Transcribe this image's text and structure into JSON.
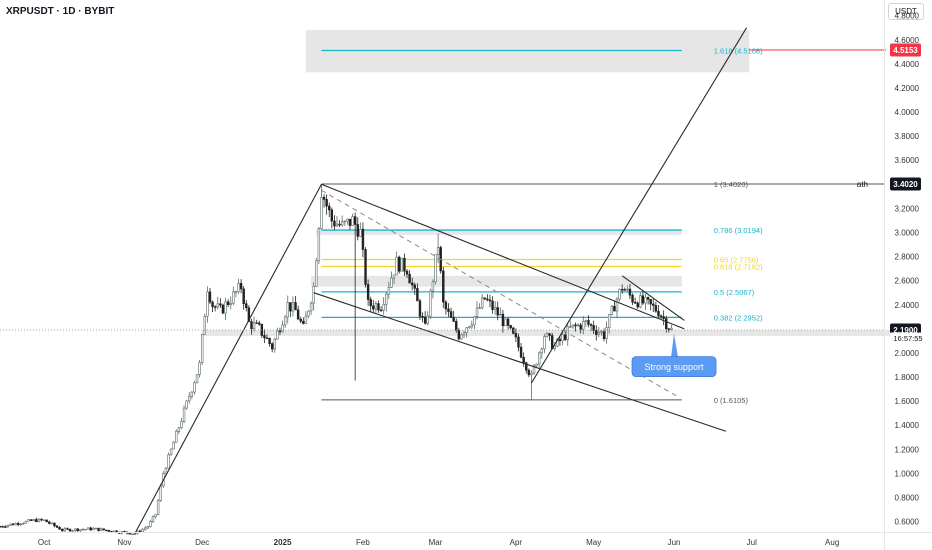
{
  "header": {
    "symbol_title": "XRPUSDT · 1D · BYBIT",
    "currency": "USDT"
  },
  "colors": {
    "up": "#26a69a",
    "down": "#222222",
    "trend": "#2a2a2a",
    "fib_teal": "#17b3c8",
    "fib_yellow": "#f2d42a",
    "fib_gray": "#555555",
    "zone_gray": "#e6e6e6",
    "target_red": "#f23645",
    "callout_blue": "#5b9bf4",
    "axis_text": "#333333"
  },
  "chart_data": {
    "type": "candlestick",
    "title": "XRPUSDT · 1D · BYBIT",
    "y_axis": {
      "unit": "USDT",
      "ylim": [
        0.53,
        4.93
      ],
      "ticks": [
        "0.6000",
        "0.8000",
        "1.0000",
        "1.2000",
        "1.4000",
        "1.6000",
        "1.8000",
        "2.0000",
        "2.2000",
        "2.4000",
        "2.6000",
        "2.8000",
        "3.0000",
        "3.2000",
        "3.4000",
        "3.6000",
        "3.8000",
        "4.0000",
        "4.2000",
        "4.4000",
        "4.6000",
        "4.8000"
      ]
    },
    "x_axis": {
      "start": "2024-09-14",
      "end": "2025-08-21",
      "ticks": [
        {
          "date": "2024-10-01",
          "label": "Oct"
        },
        {
          "date": "2024-11-01",
          "label": "Nov"
        },
        {
          "date": "2024-12-01",
          "label": "Dec"
        },
        {
          "date": "2025-01-01",
          "label": "2025",
          "bold": true
        },
        {
          "date": "2025-02-01",
          "label": "Feb"
        },
        {
          "date": "2025-03-01",
          "label": "Mar"
        },
        {
          "date": "2025-04-01",
          "label": "Apr"
        },
        {
          "date": "2025-05-01",
          "label": "May"
        },
        {
          "date": "2025-06-01",
          "label": "Jun"
        },
        {
          "date": "2025-07-01",
          "label": "Jul"
        },
        {
          "date": "2025-08-01",
          "label": "Aug"
        }
      ]
    },
    "price_path": [
      [
        "2024-09-14",
        0.56
      ],
      [
        "2024-09-27",
        0.61
      ],
      [
        "2024-10-01",
        0.61
      ],
      [
        "2024-10-08",
        0.53
      ],
      [
        "2024-10-20",
        0.54
      ],
      [
        "2024-11-01",
        0.51
      ],
      [
        "2024-11-05",
        0.5
      ],
      [
        "2024-11-10",
        0.56
      ],
      [
        "2024-11-13",
        0.66
      ],
      [
        "2024-11-16",
        1.0
      ],
      [
        "2024-11-23",
        1.45
      ],
      [
        "2024-11-30",
        1.9
      ],
      [
        "2024-12-03",
        2.55
      ],
      [
        "2024-12-05",
        2.4
      ],
      [
        "2024-12-08",
        2.35
      ],
      [
        "2024-12-12",
        2.45
      ],
      [
        "2024-12-16",
        2.55
      ],
      [
        "2024-12-19",
        2.25
      ],
      [
        "2024-12-23",
        2.2
      ],
      [
        "2024-12-28",
        2.05
      ],
      [
        "2025-01-03",
        2.4
      ],
      [
        "2025-01-06",
        2.35
      ],
      [
        "2025-01-09",
        2.2
      ],
      [
        "2025-01-13",
        2.55
      ],
      [
        "2025-01-16",
        3.35
      ],
      [
        "2025-01-20",
        3.1
      ],
      [
        "2025-01-24",
        3.05
      ],
      [
        "2025-01-28",
        3.1
      ],
      [
        "2025-01-31",
        3.0
      ],
      [
        "2025-02-03",
        2.4
      ],
      [
        "2025-02-08",
        2.4
      ],
      [
        "2025-02-14",
        2.75
      ],
      [
        "2025-02-18",
        2.7
      ],
      [
        "2025-02-25",
        2.2
      ],
      [
        "2025-03-02",
        2.9
      ],
      [
        "2025-03-04",
        2.4
      ],
      [
        "2025-03-10",
        2.15
      ],
      [
        "2025-03-16",
        2.3
      ],
      [
        "2025-03-20",
        2.45
      ],
      [
        "2025-03-26",
        2.3
      ],
      [
        "2025-04-01",
        2.1
      ],
      [
        "2025-04-07",
        1.8
      ],
      [
        "2025-04-12",
        2.15
      ],
      [
        "2025-04-16",
        2.05
      ],
      [
        "2025-04-22",
        2.2
      ],
      [
        "2025-04-28",
        2.25
      ],
      [
        "2025-05-05",
        2.15
      ],
      [
        "2025-05-09",
        2.4
      ],
      [
        "2025-05-12",
        2.55
      ],
      [
        "2025-05-16",
        2.45
      ],
      [
        "2025-05-22",
        2.4
      ],
      [
        "2025-05-26",
        2.35
      ],
      [
        "2025-05-29",
        2.25
      ],
      [
        "2025-05-31",
        2.19
      ]
    ],
    "wicks": [
      {
        "date": "2025-01-29",
        "low": 1.77
      },
      {
        "date": "2025-03-02",
        "high": 2.99
      },
      {
        "date": "2025-04-07",
        "low": 1.61
      },
      {
        "date": "2025-01-16",
        "high": 3.4
      }
    ],
    "current_price": {
      "value": 2.19,
      "label": "2.1900",
      "countdown": "16:57:55"
    },
    "ath": {
      "value": 3.402,
      "label": "ath",
      "badge": "3.4020"
    },
    "target": {
      "value": 4.5153,
      "badge": "4.5153"
    },
    "fib_levels": [
      {
        "ratio": "1.618",
        "value": 4.5108,
        "label": "1.618 (4.5108)",
        "color": "teal"
      },
      {
        "ratio": "1",
        "value": 3.402,
        "label": "1 (3.4020)",
        "color": "gray"
      },
      {
        "ratio": "0.786",
        "value": 3.0194,
        "label": "0.786 (3.0194)",
        "color": "teal"
      },
      {
        "ratio": "0.65",
        "value": 2.7756,
        "label": "0.65 (2.7756)",
        "color": "yellow"
      },
      {
        "ratio": "0.618",
        "value": 2.7182,
        "label": "0.618 (2.7182)",
        "color": "yellow"
      },
      {
        "ratio": "0.5",
        "value": 2.5067,
        "label": "0.5 (2.5067)",
        "color": "teal"
      },
      {
        "ratio": "0.382",
        "value": 2.2952,
        "label": "0.382 (2.2952)",
        "color": "teal"
      },
      {
        "ratio": "0",
        "value": 1.6105,
        "label": "0 (1.6105)",
        "color": "gray"
      }
    ],
    "fib_start_date": "2025-01-16",
    "fib_end_date": "2025-06-04",
    "zones": [
      {
        "from_date": "2025-01-10",
        "to_date": "2025-06-30",
        "low": 4.33,
        "high": 4.68
      },
      {
        "from_date": "2025-01-14",
        "to_date": "2025-06-04",
        "low": 2.98,
        "high": 3.03
      },
      {
        "from_date": "2025-01-12",
        "to_date": "2025-06-04",
        "low": 2.55,
        "high": 2.64
      },
      {
        "from_date": "2024-12-01",
        "to_date": "2025-08-27",
        "low": 2.14,
        "high": 2.19
      }
    ],
    "trendlines": [
      {
        "from": [
          "2024-11-05",
          0.5
        ],
        "to": [
          "2025-01-16",
          3.4
        ]
      },
      {
        "from": [
          "2025-01-16",
          3.4
        ],
        "to": [
          "2025-06-05",
          2.2
        ]
      },
      {
        "from": [
          "2025-01-13",
          2.5
        ],
        "to": [
          "2025-06-21",
          1.35
        ]
      },
      {
        "from": [
          "2025-04-07",
          1.75
        ],
        "to": [
          "2025-06-29",
          4.7
        ]
      },
      {
        "from": [
          "2025-05-12",
          2.64
        ],
        "to": [
          "2025-06-05",
          2.27
        ]
      },
      {
        "from": [
          "2025-01-16",
          3.35
        ],
        "to": [
          "2025-06-03",
          1.63
        ],
        "dashed": true
      }
    ],
    "callout": {
      "text": "Strong support",
      "date": "2025-06-01",
      "value": 2.16
    }
  }
}
